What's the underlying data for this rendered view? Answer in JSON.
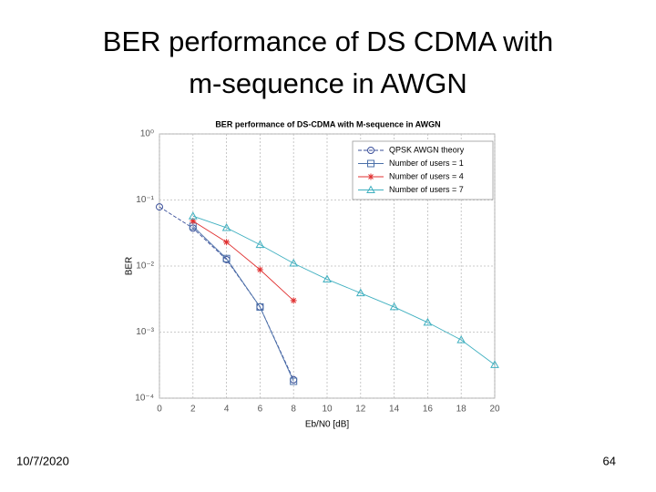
{
  "slide": {
    "title_line1": "BER performance of DS CDMA with",
    "title_line2": "m-sequence in AWGN",
    "date": "10/7/2020",
    "page": "64"
  },
  "chart_data": {
    "type": "line",
    "title": "BER performance of DS-CDMA with M-sequence in AWGN",
    "xlabel": "Eb/N0 [dB]",
    "ylabel": "BER",
    "xlim": [
      0,
      20
    ],
    "xticks": [
      0,
      2,
      4,
      6,
      8,
      10,
      12,
      14,
      16,
      18,
      20
    ],
    "ylim": [
      0.0001,
      1
    ],
    "log_y": true,
    "grid": true,
    "legend": "upper right",
    "yticks": [
      {
        "value": 0.0001,
        "label": "10⁻⁴"
      },
      {
        "value": 0.001,
        "label": "10⁻³"
      },
      {
        "value": 0.01,
        "label": "10⁻²"
      },
      {
        "value": 0.1,
        "label": "10⁻¹"
      },
      {
        "value": 1,
        "label": "10⁰"
      }
    ],
    "series": [
      {
        "name": "QPSK AWGN theory",
        "color": "#3a4f9a",
        "marker": "o",
        "dashed": true,
        "x": [
          0,
          2,
          4,
          6,
          8
        ],
        "values": [
          0.0786,
          0.0375,
          0.0125,
          0.0024,
          0.00019
        ]
      },
      {
        "name": "Number of users = 1",
        "color": "#4a6fa8",
        "marker": "s",
        "dashed": false,
        "x": [
          2,
          4,
          6,
          8
        ],
        "values": [
          0.04,
          0.013,
          0.0024,
          0.00018
        ]
      },
      {
        "name": "Number of users = 4",
        "color": "#e03030",
        "marker": "*",
        "dashed": false,
        "x": [
          2,
          4,
          6,
          8
        ],
        "values": [
          0.048,
          0.023,
          0.0088,
          0.003
        ]
      },
      {
        "name": "Number of users = 7",
        "color": "#40b0c0",
        "marker": "^",
        "dashed": false,
        "x": [
          2,
          4,
          6,
          8,
          10,
          12,
          14,
          16,
          18,
          20
        ],
        "values": [
          0.057,
          0.038,
          0.021,
          0.011,
          0.0063,
          0.0039,
          0.0024,
          0.0014,
          0.00076,
          0.00032
        ]
      }
    ]
  }
}
